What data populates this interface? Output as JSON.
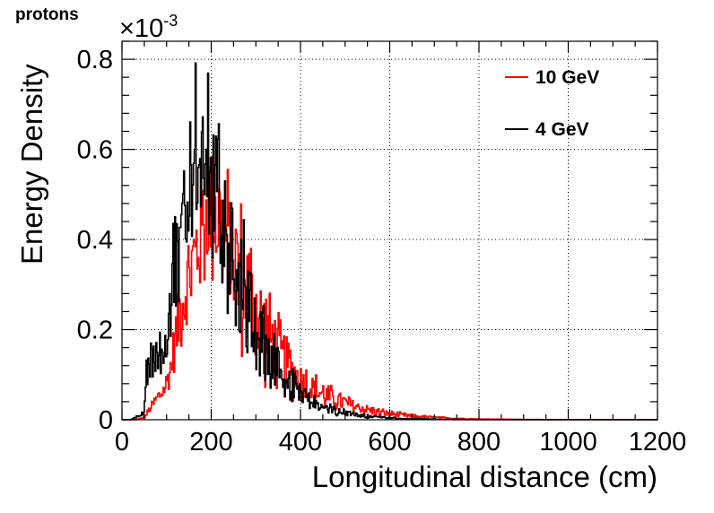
{
  "chart_data": {
    "type": "line",
    "title": "protons",
    "xlabel": "Longitudinal distance (cm)",
    "ylabel": "Energy Density",
    "y_multiplier": "×10",
    "y_multiplier_exp": "-3",
    "xlim": [
      0,
      1200
    ],
    "ylim": [
      0,
      0.00084
    ],
    "x_ticks": [
      0,
      200,
      400,
      600,
      800,
      1000,
      1200
    ],
    "x_tick_labels": [
      "0",
      "200",
      "400",
      "600",
      "800",
      "1000",
      "1200"
    ],
    "y_ticks": [
      0,
      0.0002,
      0.0004,
      0.0006,
      0.0008
    ],
    "y_tick_labels": [
      "0",
      "0.2",
      "0.4",
      "0.6",
      "0.8"
    ],
    "grid": true,
    "legend_position": "top-right",
    "series": [
      {
        "name": "10 GeV",
        "color": "#ff0000",
        "envelope_x": [
          0,
          30,
          50,
          60,
          70,
          80,
          90,
          100,
          110,
          120,
          130,
          140,
          150,
          160,
          170,
          180,
          190,
          200,
          210,
          220,
          230,
          240,
          250,
          260,
          270,
          280,
          300,
          320,
          340,
          360,
          380,
          400,
          420,
          440,
          460,
          480,
          500,
          520,
          540,
          560,
          580,
          600,
          620,
          640,
          660,
          680,
          700,
          720,
          740,
          760,
          780,
          800,
          850,
          900,
          950,
          1000,
          1050,
          1100,
          1150,
          1200
        ],
        "envelope_y": [
          0.0,
          0.0,
          5e-06,
          2e-05,
          3.5e-05,
          5e-05,
          6e-05,
          8e-05,
          0.00012,
          0.00018,
          0.00024,
          0.00028,
          0.00031,
          0.00035,
          0.00039,
          0.00043,
          0.00046,
          0.00047,
          0.00046,
          0.00044,
          0.00042,
          0.0004,
          0.00037,
          0.00034,
          0.00031,
          0.00029,
          0.00024,
          0.0002,
          0.000165,
          0.000135,
          0.00011,
          9e-05,
          7.5e-05,
          6.2e-05,
          5.2e-05,
          4.4e-05,
          3.7e-05,
          3e-05,
          2.5e-05,
          2e-05,
          1.6e-05,
          1.3e-05,
          1.1e-05,
          9e-06,
          7e-06,
          6e-06,
          5e-06,
          4e-06,
          3e-06,
          2.5e-06,
          2e-06,
          1.5e-06,
          1e-06,
          6e-07,
          3e-07,
          2e-07,
          1e-07,
          0.0,
          0.0,
          0.0
        ]
      },
      {
        "name": "4 GeV",
        "color": "#000000",
        "envelope_x": [
          0,
          20,
          40,
          50,
          55,
          60,
          70,
          80,
          90,
          100,
          110,
          120,
          130,
          140,
          150,
          160,
          170,
          180,
          190,
          200,
          210,
          220,
          230,
          240,
          250,
          260,
          280,
          300,
          320,
          340,
          360,
          380,
          400,
          420,
          440,
          460,
          480,
          500,
          520,
          540,
          560,
          580,
          600,
          620,
          640,
          660,
          680,
          700,
          750,
          800,
          850,
          900,
          1000,
          1100,
          1200
        ],
        "envelope_y": [
          0.0,
          0.0,
          1e-05,
          2e-05,
          0.00011,
          0.00012,
          0.00013,
          0.00013,
          0.00014,
          0.00016,
          0.00026,
          0.00035,
          0.00042,
          0.0005,
          0.00056,
          0.00061,
          0.00063,
          0.00061,
          0.00058,
          0.00055,
          0.00051,
          0.00047,
          0.00043,
          0.00039,
          0.00035,
          0.00031,
          0.00025,
          0.0002,
          0.000155,
          0.00012,
          9.2e-05,
          7e-05,
          5.4e-05,
          4.1e-05,
          3.1e-05,
          2.4e-05,
          1.8e-05,
          1.4e-05,
          1.1e-05,
          8.5e-06,
          6.5e-06,
          5e-06,
          4e-06,
          3e-06,
          2.4e-06,
          1.8e-06,
          1.4e-06,
          1e-06,
          6e-07,
          3e-07,
          2e-07,
          1e-07,
          0.0,
          0.0,
          0.0
        ]
      }
    ]
  }
}
